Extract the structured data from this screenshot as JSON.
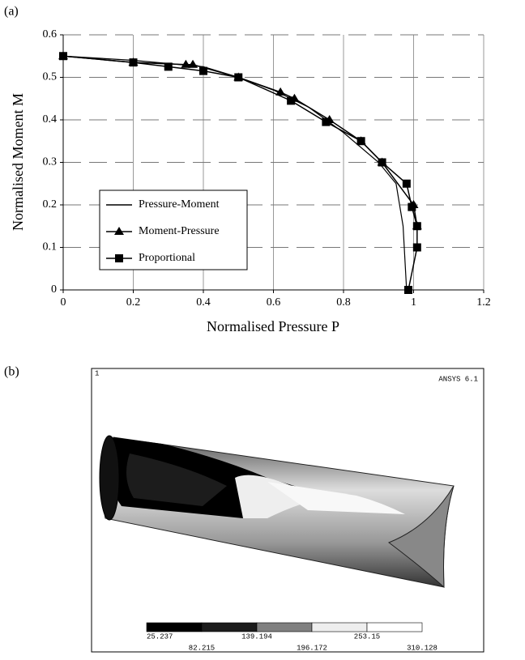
{
  "panel_labels": [
    "(a)",
    "(b)"
  ],
  "chart_data": {
    "type": "line",
    "xlabel": "Normalised Pressure P",
    "ylabel": "Normalised Moment M",
    "xlim": [
      0,
      1.2
    ],
    "xticks": [
      0,
      0.2,
      0.4,
      0.6,
      0.8,
      1,
      1.2
    ],
    "ylim": [
      0,
      0.6
    ],
    "yticks": [
      0,
      0.1,
      0.2,
      0.3,
      0.4,
      0.5,
      0.6
    ],
    "grid": true,
    "legend": "lower-left",
    "series": [
      {
        "name": "Pressure-Moment",
        "color": "#000000",
        "marker": "none",
        "x": [
          0,
          0.2,
          0.4,
          0.5,
          0.6,
          0.7,
          0.8,
          0.9,
          0.95,
          0.97,
          0.98
        ],
        "values": [
          0.55,
          0.54,
          0.525,
          0.5,
          0.47,
          0.43,
          0.37,
          0.3,
          0.25,
          0.15,
          0
        ]
      },
      {
        "name": "Moment-Pressure",
        "color": "#000000",
        "marker": "triangle",
        "x": [
          0,
          0.2,
          0.35,
          0.37,
          0.5,
          0.62,
          0.66,
          0.76,
          0.85,
          0.91,
          1.0,
          1.01
        ],
        "values": [
          0.55,
          0.535,
          0.53,
          0.53,
          0.5,
          0.465,
          0.45,
          0.4,
          0.35,
          0.3,
          0.2,
          0.15
        ]
      },
      {
        "name": "Proportional",
        "color": "#000000",
        "marker": "square",
        "x": [
          0,
          0.2,
          0.3,
          0.4,
          0.5,
          0.65,
          0.75,
          0.85,
          0.91,
          0.98,
          0.995,
          1.01,
          1.01,
          0.985
        ],
        "values": [
          0.55,
          0.535,
          0.525,
          0.515,
          0.5,
          0.445,
          0.395,
          0.35,
          0.3,
          0.25,
          0.195,
          0.15,
          0.1,
          0
        ]
      }
    ]
  },
  "contour_plot": {
    "software": "ANSYS 6.1",
    "window_number": "1",
    "colorbar": {
      "ticks": [
        25.237,
        82.215,
        139.194,
        196.172,
        253.15,
        310.128
      ],
      "colors": [
        "#000000",
        "#1c1c1c",
        "#808080",
        "#eeeeee",
        "#ffffff"
      ]
    }
  }
}
